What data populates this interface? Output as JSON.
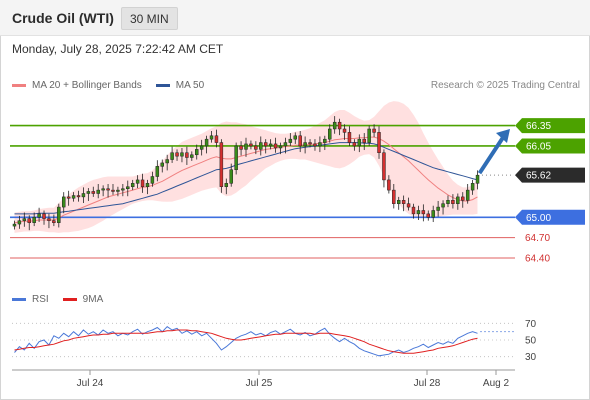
{
  "header": {
    "title": "Crude Oil (WTI)",
    "timeframe": "30 MIN"
  },
  "datetime": "Monday, July 28, 2025 7:22:42 AM CET",
  "legend": {
    "ma20": {
      "label": "MA 20 + Bollinger Bands",
      "color": "#f08080"
    },
    "ma50": {
      "label": "MA 50",
      "color": "#2f5597"
    }
  },
  "credit": "Research © 2025 Trading Central",
  "rsi_legend": {
    "rsi": {
      "label": "RSI",
      "color": "#4a78d8"
    },
    "ma9": {
      "label": "9MA",
      "color": "#e02020"
    }
  },
  "colors": {
    "resistance": "#4ca200",
    "pivot": "#3d6fe0",
    "support": "#e06060",
    "last": "#2b2b2b",
    "bull": "#3a8a1a",
    "bear": "#d43030",
    "arrow": "#2f6db5",
    "bollinger": "#ffd6d6"
  },
  "chart_data": [
    {
      "type": "candlestick",
      "title": "Crude Oil (WTI)",
      "timeframe": "30 MIN",
      "x_ticks": [
        "Jul 24",
        "Jul 25",
        "Jul 28",
        "Aug 2"
      ],
      "ylim": [
        64.15,
        66.55
      ],
      "levels": [
        {
          "name": "resistance-2",
          "value": 66.35,
          "label": "66.35",
          "kind": "resistance"
        },
        {
          "name": "resistance-1",
          "value": 66.05,
          "label": "66.05",
          "kind": "resistance"
        },
        {
          "name": "last-price",
          "value": 65.62,
          "label": "65.62",
          "kind": "last"
        },
        {
          "name": "pivot",
          "value": 65.0,
          "label": "65.00",
          "kind": "pivot"
        },
        {
          "name": "support-1",
          "value": 64.7,
          "label": "64.70",
          "kind": "support"
        },
        {
          "name": "support-2",
          "value": 64.4,
          "label": "64.40",
          "kind": "support"
        }
      ],
      "close": [
        64.9,
        64.95,
        64.98,
        64.92,
        65.0,
        65.05,
        64.98,
        64.95,
        64.92,
        65.15,
        65.3,
        65.28,
        65.32,
        65.3,
        65.35,
        65.38,
        65.35,
        65.4,
        65.42,
        65.4,
        65.38,
        65.4,
        65.42,
        65.45,
        65.5,
        65.55,
        65.45,
        65.5,
        65.6,
        65.75,
        65.8,
        65.85,
        65.95,
        65.9,
        65.95,
        65.88,
        65.92,
        66.0,
        66.05,
        66.15,
        66.2,
        66.1,
        65.45,
        65.5,
        65.7,
        66.05,
        66.0,
        66.08,
        66.05,
        66.0,
        66.1,
        66.05,
        66.08,
        66.02,
        66.05,
        66.1,
        66.15,
        66.2,
        66.05,
        66.1,
        66.08,
        66.05,
        66.1,
        66.15,
        66.3,
        66.4,
        66.3,
        66.25,
        66.1,
        66.05,
        66.15,
        66.1,
        66.3,
        66.25,
        65.95,
        65.55,
        65.4,
        65.2,
        65.25,
        65.2,
        65.15,
        65.05,
        65.1,
        65.05,
        65.0,
        65.1,
        65.15,
        65.2,
        65.25,
        65.2,
        65.3,
        65.25,
        65.4,
        65.5,
        65.62
      ],
      "ma20": [
        64.92,
        64.93,
        64.94,
        64.94,
        64.95,
        64.96,
        64.96,
        64.96,
        64.96,
        64.99,
        65.03,
        65.06,
        65.09,
        65.12,
        65.15,
        65.18,
        65.21,
        65.24,
        65.27,
        65.3,
        65.32,
        65.34,
        65.36,
        65.38,
        65.4,
        65.42,
        65.44,
        65.45,
        65.47,
        65.5,
        65.53,
        65.57,
        65.61,
        65.65,
        65.69,
        65.72,
        65.75,
        65.78,
        65.81,
        65.84,
        65.87,
        65.89,
        65.87,
        65.86,
        65.86,
        65.88,
        65.9,
        65.92,
        65.94,
        65.96,
        65.98,
        66.0,
        66.01,
        66.02,
        66.03,
        66.04,
        66.05,
        66.06,
        66.06,
        66.07,
        66.07,
        66.08,
        66.09,
        66.1,
        66.12,
        66.14,
        66.15,
        66.16,
        66.16,
        66.16,
        66.17,
        66.17,
        66.18,
        66.18,
        66.16,
        66.12,
        66.07,
        66.01,
        65.95,
        65.89,
        65.83,
        65.76,
        65.69,
        65.62,
        65.55,
        65.49,
        65.43,
        65.38,
        65.33,
        65.29,
        65.26,
        65.24,
        65.24,
        65.26,
        65.3
      ],
      "ma50": [
        65.05,
        65.05,
        65.05,
        65.05,
        65.05,
        65.06,
        65.06,
        65.06,
        65.06,
        65.07,
        65.08,
        65.09,
        65.1,
        65.11,
        65.12,
        65.13,
        65.14,
        65.15,
        65.16,
        65.17,
        65.18,
        65.19,
        65.2,
        65.22,
        65.24,
        65.26,
        65.28,
        65.3,
        65.32,
        65.34,
        65.37,
        65.4,
        65.43,
        65.46,
        65.49,
        65.52,
        65.55,
        65.58,
        65.61,
        65.64,
        65.67,
        65.7,
        65.71,
        65.72,
        65.74,
        65.77,
        65.79,
        65.81,
        65.83,
        65.85,
        65.87,
        65.89,
        65.91,
        65.93,
        65.95,
        65.97,
        65.99,
        66.01,
        66.02,
        66.03,
        66.04,
        66.05,
        66.06,
        66.07,
        66.08,
        66.09,
        66.1,
        66.1,
        66.1,
        66.1,
        66.1,
        66.09,
        66.09,
        66.08,
        66.06,
        66.03,
        66.0,
        65.97,
        65.94,
        65.91,
        65.88,
        65.85,
        65.82,
        65.79,
        65.76,
        65.73,
        65.71,
        65.69,
        65.67,
        65.65,
        65.63,
        65.61,
        65.59,
        65.57,
        65.55
      ],
      "bb_width": [
        0.15,
        0.15,
        0.15,
        0.15,
        0.15,
        0.16,
        0.17,
        0.18,
        0.18,
        0.22,
        0.25,
        0.28,
        0.3,
        0.32,
        0.33,
        0.34,
        0.34,
        0.33,
        0.32,
        0.3,
        0.28,
        0.26,
        0.24,
        0.22,
        0.2,
        0.2,
        0.2,
        0.2,
        0.22,
        0.26,
        0.3,
        0.34,
        0.38,
        0.4,
        0.42,
        0.42,
        0.42,
        0.42,
        0.42,
        0.43,
        0.44,
        0.45,
        0.52,
        0.55,
        0.54,
        0.52,
        0.48,
        0.45,
        0.4,
        0.36,
        0.32,
        0.28,
        0.25,
        0.22,
        0.2,
        0.19,
        0.19,
        0.2,
        0.21,
        0.22,
        0.24,
        0.27,
        0.3,
        0.33,
        0.37,
        0.41,
        0.43,
        0.42,
        0.38,
        0.33,
        0.28,
        0.25,
        0.25,
        0.3,
        0.4,
        0.52,
        0.62,
        0.7,
        0.75,
        0.78,
        0.78,
        0.75,
        0.7,
        0.62,
        0.55,
        0.48,
        0.42,
        0.36,
        0.3,
        0.25,
        0.22,
        0.2,
        0.2,
        0.22,
        0.25
      ]
    },
    {
      "type": "line",
      "title": "RSI",
      "ylim": [
        20,
        80
      ],
      "y_ticks": [
        30,
        50,
        70
      ],
      "series": [
        {
          "name": "RSI",
          "values": [
            35,
            42,
            38,
            46,
            40,
            48,
            50,
            44,
            55,
            52,
            58,
            54,
            60,
            55,
            62,
            57,
            60,
            56,
            62,
            58,
            60,
            55,
            58,
            56,
            60,
            63,
            57,
            60,
            62,
            65,
            60,
            66,
            62,
            64,
            58,
            61,
            57,
            60,
            55,
            58,
            52,
            46,
            38,
            42,
            47,
            52,
            55,
            57,
            60,
            56,
            58,
            55,
            59,
            61,
            57,
            60,
            63,
            58,
            56,
            59,
            55,
            57,
            61,
            64,
            57,
            52,
            48,
            52,
            48,
            45,
            40,
            37,
            35,
            33,
            31,
            32,
            33,
            36,
            38,
            35,
            37,
            40,
            42,
            45,
            41,
            44,
            47,
            45,
            48,
            46,
            52,
            55,
            58,
            60,
            58
          ]
        },
        {
          "name": "9MA",
          "values": [
            38,
            39,
            40,
            41,
            41,
            42,
            43,
            44,
            45,
            47,
            49,
            50,
            52,
            53,
            54,
            55,
            56,
            56,
            57,
            57,
            58,
            58,
            58,
            58,
            58,
            58,
            58,
            58,
            59,
            60,
            60,
            61,
            61,
            62,
            62,
            62,
            61,
            61,
            60,
            59,
            58,
            56,
            54,
            52,
            51,
            50,
            50,
            51,
            52,
            53,
            54,
            55,
            56,
            57,
            57,
            58,
            58,
            58,
            58,
            58,
            58,
            57,
            58,
            58,
            58,
            57,
            56,
            55,
            54,
            52,
            50,
            48,
            45,
            43,
            41,
            39,
            37,
            36,
            35,
            34,
            34,
            34,
            35,
            36,
            37,
            38,
            40,
            41,
            42,
            43,
            45,
            47,
            49,
            51,
            52
          ]
        }
      ]
    }
  ]
}
